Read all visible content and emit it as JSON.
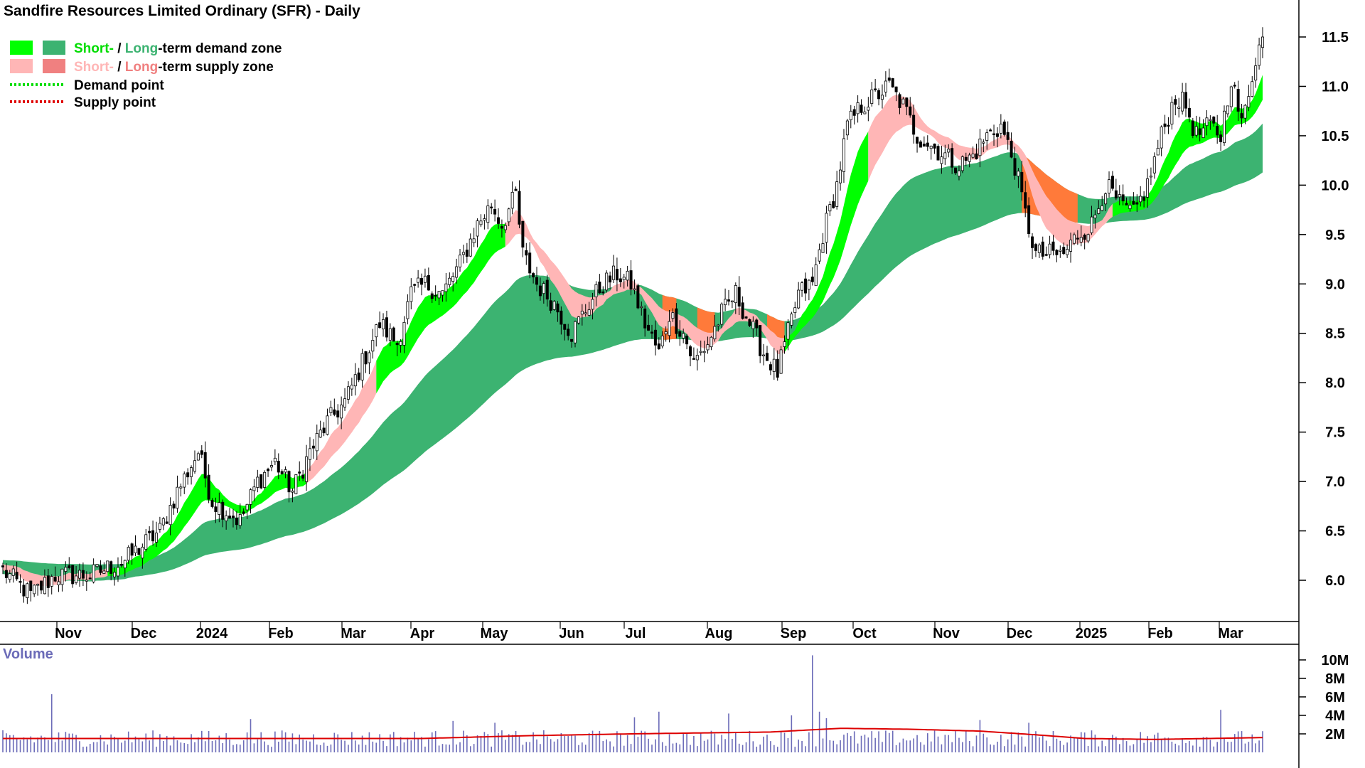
{
  "title": "Sandfire Resources Limited Ordinary (SFR) - Daily",
  "legend": {
    "demand": {
      "short": "Short-",
      "sep": " / ",
      "long": "Long",
      "rest": "-term demand zone",
      "short_color": "#00ff00",
      "long_color": "#3cb371"
    },
    "supply": {
      "short": "Short-",
      "sep": " / ",
      "long": "Long",
      "rest": "-term supply zone",
      "short_color": "#ffb6b6",
      "long_color": "#f08080"
    },
    "demand_point": "Demand point",
    "supply_point": "Supply point",
    "demand_point_color": "#00dd00",
    "supply_point_color": "#e00000"
  },
  "volume_panel": {
    "label": "Volume",
    "label_color": "#6b6bb8"
  },
  "colors": {
    "short_demand": "#00ff00",
    "long_demand": "#3cb371",
    "short_supply": "#ffb6b6",
    "long_supply": "#f08080",
    "overlap": "#ff7a3a",
    "volume_bar": "#6b6bb8",
    "volume_avg": "#dd0000"
  },
  "chart_data": [
    {
      "type": "candlestick",
      "title": "Sandfire Resources Limited Ordinary (SFR) - Daily",
      "y_ticks": [
        "6.0",
        "6.5",
        "7.0",
        "7.5",
        "8.0",
        "8.5",
        "9.0",
        "9.5",
        "10.0",
        "10.5",
        "11.0",
        "11.5"
      ],
      "ylim": [
        5.55,
        11.95
      ],
      "x_ticks": [
        "Nov",
        "Dec",
        "2024",
        "Feb",
        "Mar",
        "Apr",
        "May",
        "Jun",
        "Jul",
        "Aug",
        "Sep",
        "Oct",
        "Nov",
        "Dec",
        "2025",
        "Feb",
        "Mar"
      ],
      "close_anchors": [
        [
          0,
          6.1
        ],
        [
          8,
          5.85
        ],
        [
          15,
          6.05
        ],
        [
          25,
          6.05
        ],
        [
          35,
          6.2
        ],
        [
          45,
          6.5
        ],
        [
          50,
          6.9
        ],
        [
          56,
          7.3
        ],
        [
          60,
          6.8
        ],
        [
          64,
          6.7
        ],
        [
          68,
          6.6
        ],
        [
          73,
          7.0
        ],
        [
          78,
          7.2
        ],
        [
          83,
          6.9
        ],
        [
          88,
          7.3
        ],
        [
          93,
          7.6
        ],
        [
          98,
          7.8
        ],
        [
          103,
          8.2
        ],
        [
          108,
          8.6
        ],
        [
          113,
          8.4
        ],
        [
          117,
          8.9
        ],
        [
          121,
          9.0
        ],
        [
          126,
          8.9
        ],
        [
          131,
          9.2
        ],
        [
          136,
          9.6
        ],
        [
          140,
          9.8
        ],
        [
          143,
          9.6
        ],
        [
          147,
          9.9
        ],
        [
          149,
          9.3
        ],
        [
          153,
          9.0
        ],
        [
          158,
          8.8
        ],
        [
          163,
          8.5
        ],
        [
          168,
          8.8
        ],
        [
          172,
          9.0
        ],
        [
          176,
          9.1
        ],
        [
          180,
          9.0
        ],
        [
          184,
          8.6
        ],
        [
          188,
          8.3
        ],
        [
          191,
          8.7
        ],
        [
          195,
          8.5
        ],
        [
          198,
          8.2
        ],
        [
          202,
          8.4
        ],
        [
          206,
          8.7
        ],
        [
          210,
          8.9
        ],
        [
          214,
          8.6
        ],
        [
          218,
          8.3
        ],
        [
          222,
          8.1
        ],
        [
          225,
          8.5
        ],
        [
          228,
          8.9
        ],
        [
          232,
          9.0
        ],
        [
          235,
          9.5
        ],
        [
          239,
          10.0
        ],
        [
          242,
          10.6
        ],
        [
          246,
          10.8
        ],
        [
          250,
          10.9
        ],
        [
          254,
          11.0
        ],
        [
          258,
          10.8
        ],
        [
          262,
          10.5
        ],
        [
          266,
          10.4
        ],
        [
          270,
          10.3
        ],
        [
          274,
          10.2
        ],
        [
          278,
          10.3
        ],
        [
          282,
          10.5
        ],
        [
          286,
          10.6
        ],
        [
          290,
          10.2
        ],
        [
          293,
          9.7
        ],
        [
          296,
          9.3
        ],
        [
          300,
          9.3
        ],
        [
          304,
          9.3
        ],
        [
          308,
          9.5
        ],
        [
          312,
          9.6
        ],
        [
          316,
          10.0
        ],
        [
          320,
          9.8
        ],
        [
          324,
          9.7
        ],
        [
          328,
          10.0
        ],
        [
          332,
          10.5
        ],
        [
          336,
          10.9
        ],
        [
          339,
          10.8
        ],
        [
          342,
          10.5
        ],
        [
          346,
          10.6
        ],
        [
          349,
          10.5
        ],
        [
          352,
          11.1
        ],
        [
          355,
          10.6
        ],
        [
          359,
          11.3
        ],
        [
          361,
          11.5
        ]
      ],
      "zones": {
        "short_demand": [
          [
            30,
            87
          ],
          [
            107,
            144
          ],
          [
            224,
            248
          ],
          [
            318,
            362
          ]
        ],
        "short_supply": [
          [
            0,
            30
          ],
          [
            87,
            107
          ],
          [
            144,
            224
          ],
          [
            248,
            318
          ]
        ],
        "long_demand": [
          [
            0,
            362
          ]
        ],
        "long_supply_overlap": [
          [
            189,
            193
          ],
          [
            199,
            204
          ],
          [
            219,
            224
          ],
          [
            292,
            308
          ]
        ]
      },
      "volume": {
        "y_ticks": [
          "2M",
          "4M",
          "6M",
          "8M",
          "10M"
        ],
        "ylim": [
          0,
          11
        ],
        "spikes": [
          [
            14,
            6.3
          ],
          [
            71,
            3.6
          ],
          [
            129,
            3.4
          ],
          [
            141,
            3.2
          ],
          [
            181,
            3.8
          ],
          [
            188,
            4.4
          ],
          [
            208,
            4.2
          ],
          [
            226,
            4.0
          ],
          [
            232,
            10.5
          ],
          [
            234,
            4.4
          ],
          [
            236,
            3.7
          ],
          [
            280,
            3.5
          ],
          [
            294,
            3.2
          ],
          [
            349,
            4.6
          ]
        ],
        "avg_anchors": [
          [
            0,
            1.5
          ],
          [
            60,
            1.5
          ],
          [
            120,
            1.5
          ],
          [
            150,
            1.8
          ],
          [
            180,
            2.0
          ],
          [
            220,
            2.2
          ],
          [
            240,
            2.6
          ],
          [
            260,
            2.5
          ],
          [
            280,
            2.3
          ],
          [
            296,
            1.9
          ],
          [
            310,
            1.5
          ],
          [
            330,
            1.4
          ],
          [
            361,
            1.6
          ]
        ]
      }
    }
  ]
}
